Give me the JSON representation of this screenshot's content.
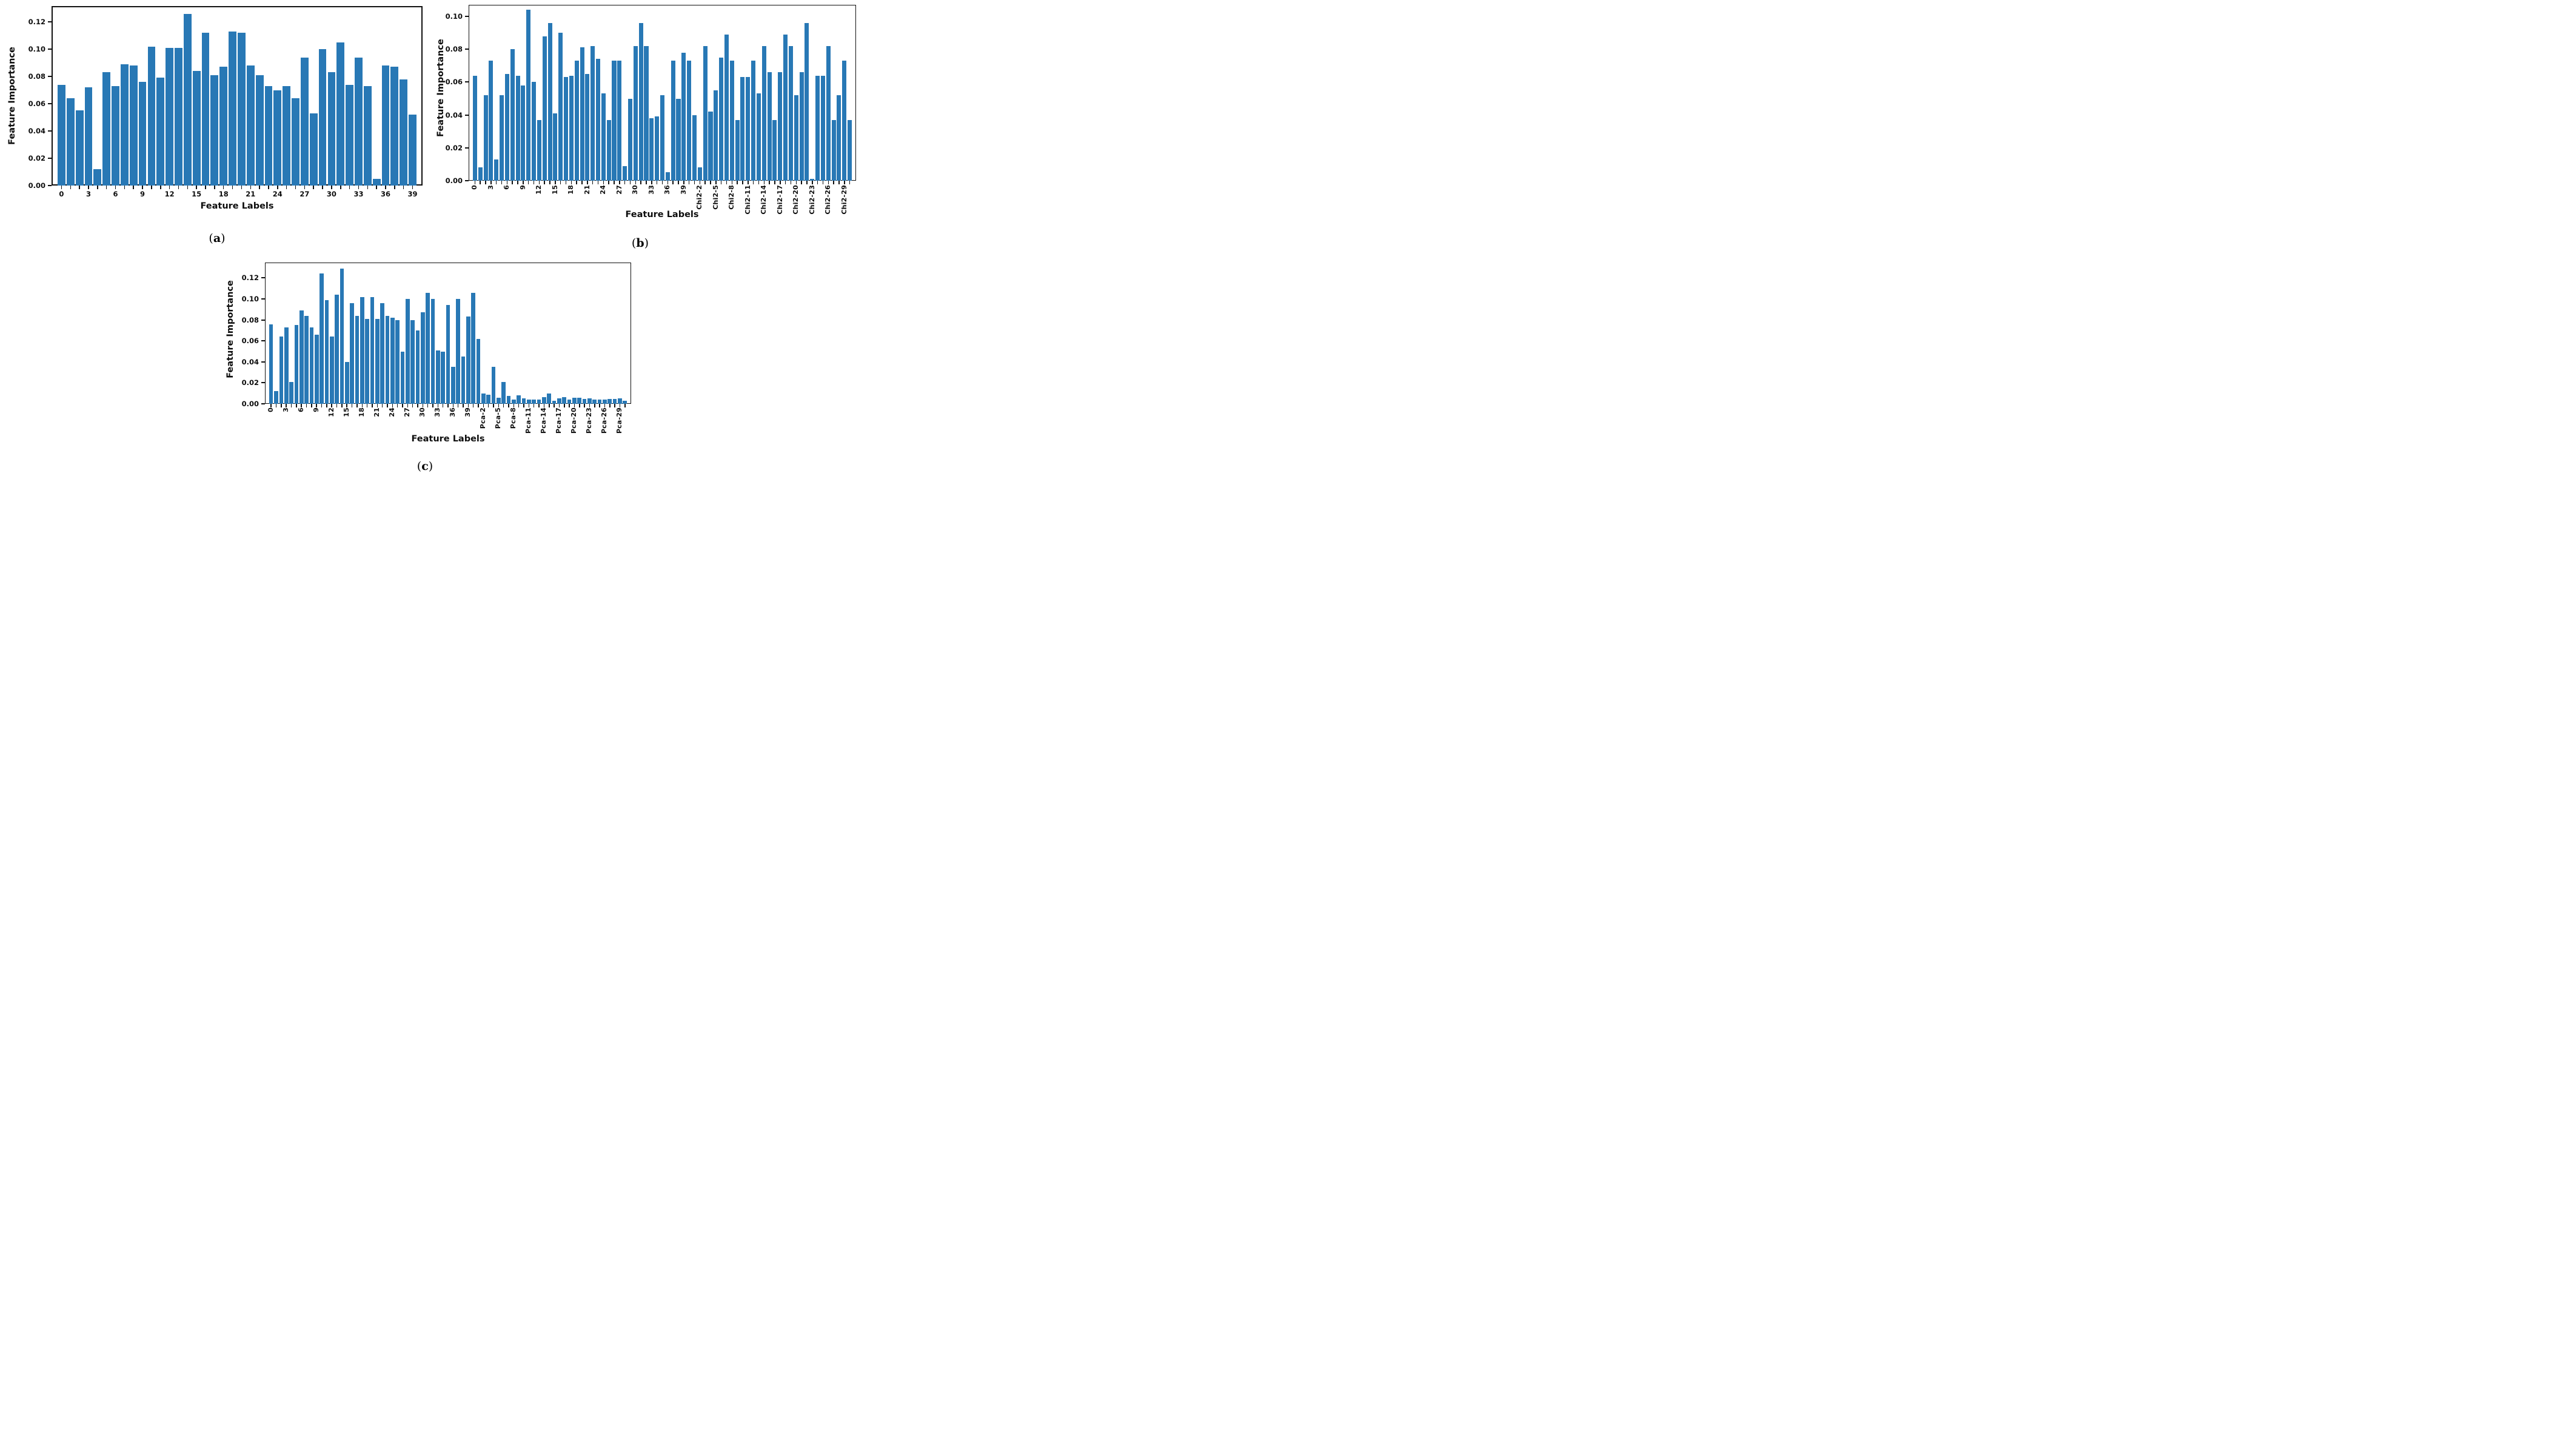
{
  "figure": {
    "background": "#ffffff",
    "bar_color": "#2878b5",
    "axis_color": "#111111"
  },
  "chart_data": [
    {
      "type": "bar",
      "id": "a",
      "title": "",
      "xlabel": "Feature Labels",
      "ylabel": "Feature Importance",
      "caption_prefix": "(",
      "caption_letter": "a",
      "caption_suffix": ")",
      "n_bars": 40,
      "ylim": [
        0.0,
        0.1314
      ],
      "grid": false,
      "legend": "none",
      "yticks": [
        "0.00",
        "0.02",
        "0.04",
        "0.06",
        "0.08",
        "0.10",
        "0.12"
      ],
      "xtick_indices": [
        0,
        3,
        6,
        9,
        12,
        15,
        18,
        21,
        24,
        27,
        30,
        33,
        36,
        39
      ],
      "xtick_labels": [
        "0",
        "3",
        "6",
        "9",
        "12",
        "15",
        "18",
        "21",
        "24",
        "27",
        "30",
        "33",
        "36",
        "39"
      ],
      "values": [
        0.074,
        0.064,
        0.055,
        0.072,
        0.012,
        0.083,
        0.073,
        0.089,
        0.088,
        0.076,
        0.102,
        0.079,
        0.101,
        0.101,
        0.126,
        0.084,
        0.112,
        0.081,
        0.087,
        0.113,
        0.112,
        0.088,
        0.081,
        0.073,
        0.07,
        0.073,
        0.064,
        0.094,
        0.053,
        0.1,
        0.083,
        0.105,
        0.074,
        0.094,
        0.073,
        0.005,
        0.088,
        0.087,
        0.078,
        0.052
      ]
    },
    {
      "type": "bar",
      "id": "b",
      "title": "",
      "xlabel": "Feature Labels",
      "ylabel": "Feature Importance",
      "caption_prefix": "(",
      "caption_letter": "b",
      "caption_suffix": ")",
      "n_bars": 71,
      "ylim": [
        0.0,
        0.107
      ],
      "grid": false,
      "legend": "none",
      "yticks": [
        "0.00",
        "0.02",
        "0.04",
        "0.06",
        "0.08",
        "0.10"
      ],
      "xtick_indices": [
        0,
        3,
        6,
        9,
        12,
        15,
        18,
        21,
        24,
        27,
        30,
        33,
        36,
        39,
        42,
        45,
        48,
        51,
        54,
        57,
        60,
        63,
        66,
        69
      ],
      "xtick_labels": [
        "0",
        "3",
        "6",
        "9",
        "12",
        "15",
        "18",
        "21",
        "24",
        "27",
        "30",
        "33",
        "36",
        "39",
        "Chi2-2",
        "Chi2-5",
        "Chi2-8",
        "Chi2-11",
        "Chi2-14",
        "Chi2-17",
        "Chi2-20",
        "Chi2-23",
        "Chi2-26",
        "Chi2-29"
      ],
      "values": [
        0.064,
        0.008,
        0.052,
        0.073,
        0.013,
        0.052,
        0.065,
        0.08,
        0.064,
        0.058,
        0.104,
        0.06,
        0.037,
        0.088,
        0.096,
        0.041,
        0.09,
        0.063,
        0.064,
        0.073,
        0.081,
        0.065,
        0.082,
        0.074,
        0.053,
        0.037,
        0.073,
        0.073,
        0.009,
        0.05,
        0.082,
        0.096,
        0.082,
        0.038,
        0.039,
        0.052,
        0.005,
        0.073,
        0.05,
        0.078,
        0.073,
        0.04,
        0.008,
        0.082,
        0.042,
        0.055,
        0.075,
        0.089,
        0.073,
        0.037,
        0.063,
        0.063,
        0.073,
        0.053,
        0.082,
        0.066,
        0.037,
        0.066,
        0.089,
        0.082,
        0.052,
        0.066,
        0.096,
        0.001,
        0.064,
        0.064,
        0.082,
        0.037,
        0.052,
        0.073,
        0.037
      ]
    },
    {
      "type": "bar",
      "id": "c",
      "title": "",
      "xlabel": "Feature Labels",
      "ylabel": "Feature Importance",
      "caption_prefix": "(",
      "caption_letter": "c",
      "caption_suffix": ")",
      "n_bars": 71,
      "ylim": [
        0.0,
        0.1344
      ],
      "grid": false,
      "legend": "none",
      "yticks": [
        "0.00",
        "0.02",
        "0.04",
        "0.06",
        "0.08",
        "0.10",
        "0.12"
      ],
      "xtick_indices": [
        0,
        3,
        6,
        9,
        12,
        15,
        18,
        21,
        24,
        27,
        30,
        33,
        36,
        39,
        42,
        45,
        48,
        51,
        54,
        57,
        60,
        63,
        66,
        69
      ],
      "xtick_labels": [
        "0",
        "3",
        "6",
        "9",
        "12",
        "15",
        "18",
        "21",
        "24",
        "27",
        "30",
        "33",
        "36",
        "39",
        "Pca-2",
        "Pca-5",
        "Pca-8",
        "Pca-11",
        "Pca-14",
        "Pca-17",
        "Pca-20",
        "Pca-23",
        "Pca-26",
        "Pca-29"
      ],
      "values": [
        0.076,
        0.012,
        0.064,
        0.073,
        0.021,
        0.075,
        0.089,
        0.084,
        0.073,
        0.066,
        0.124,
        0.099,
        0.064,
        0.104,
        0.129,
        0.04,
        0.096,
        0.084,
        0.102,
        0.081,
        0.102,
        0.081,
        0.096,
        0.084,
        0.082,
        0.08,
        0.05,
        0.1,
        0.08,
        0.07,
        0.087,
        0.106,
        0.1,
        0.051,
        0.05,
        0.094,
        0.035,
        0.1,
        0.045,
        0.083,
        0.106,
        0.062,
        0.01,
        0.0085,
        0.035,
        0.006,
        0.021,
        0.0075,
        0.004,
        0.008,
        0.005,
        0.004,
        0.004,
        0.004,
        0.0065,
        0.01,
        0.003,
        0.005,
        0.0065,
        0.004,
        0.0055,
        0.0055,
        0.0045,
        0.005,
        0.004,
        0.004,
        0.004,
        0.0045,
        0.0045,
        0.005,
        0.003
      ]
    }
  ]
}
